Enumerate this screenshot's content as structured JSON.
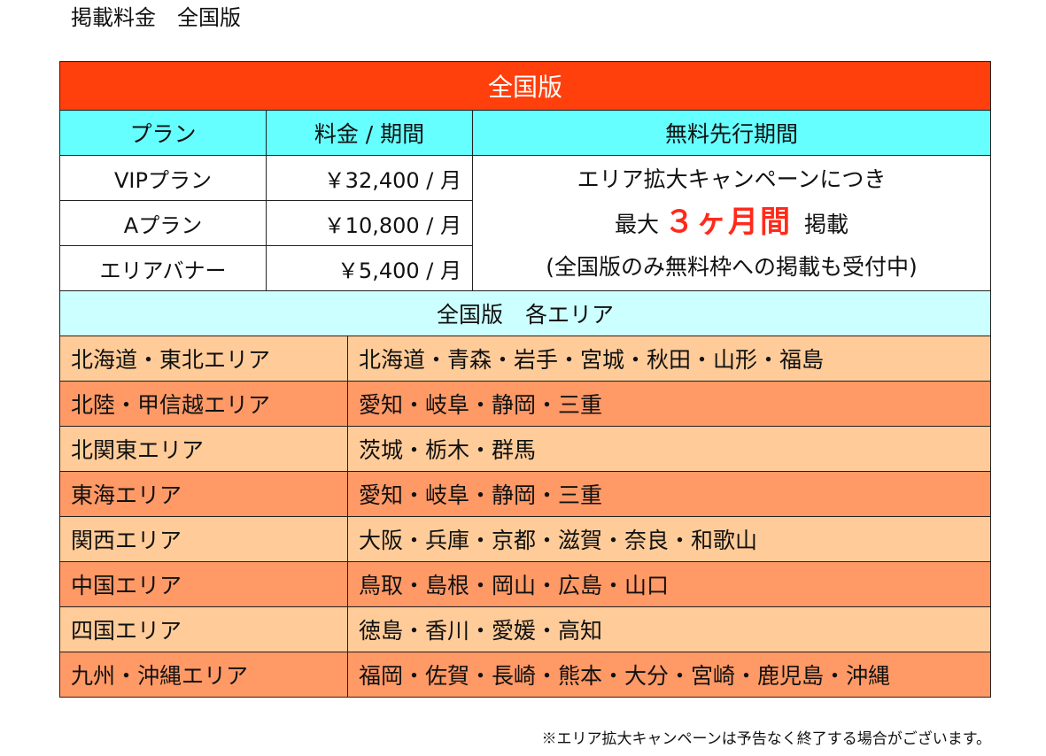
{
  "page_title": "掲載料金　全国版",
  "banner": "全国版",
  "headers": {
    "plan": "プラン",
    "price": "料金 / 期間",
    "free_period": "無料先行期間"
  },
  "plans": [
    {
      "name": "VIPプラン",
      "price": "￥32,400 / 月"
    },
    {
      "name": "Aプラン",
      "price": "￥10,800 / 月"
    },
    {
      "name": "エリアバナー",
      "price": "￥5,400 / 月"
    }
  ],
  "campaign": {
    "line1": "エリア拡大キャンペーンにつき",
    "prefix": "最大",
    "highlight": "３ヶ月間",
    "suffix": "掲載",
    "line3": "(全国版のみ無料枠への掲載も受付中)"
  },
  "area_section_title": "全国版　各エリア",
  "areas": [
    {
      "name": "北海道・東北エリア",
      "prefectures": "北海道・青森・岩手・宮城・秋田・山形・福島"
    },
    {
      "name": "北陸・甲信越エリア",
      "prefectures": "愛知・岐阜・静岡・三重"
    },
    {
      "name": "北関東エリア",
      "prefectures": "茨城・栃木・群馬"
    },
    {
      "name": "東海エリア",
      "prefectures": "愛知・岐阜・静岡・三重"
    },
    {
      "name": "関西エリア",
      "prefectures": "大阪・兵庫・京都・滋賀・奈良・和歌山"
    },
    {
      "name": "中国エリア",
      "prefectures": "鳥取・島根・岡山・広島・山口"
    },
    {
      "name": "四国エリア",
      "prefectures": "徳島・香川・愛媛・高知"
    },
    {
      "name": "九州・沖縄エリア",
      "prefectures": "福岡・佐賀・長崎・熊本・大分・宮崎・鹿児島・沖縄"
    }
  ],
  "footnote": "※エリア拡大キャンペーンは予告なく終了する場合がございます。",
  "colors": {
    "banner": "#ff3f0c",
    "header": "#66ffff",
    "area_header": "#ccffff",
    "row_light": "#ffcc99",
    "row_dark": "#ff9966",
    "highlight": "#ff2a1a"
  }
}
